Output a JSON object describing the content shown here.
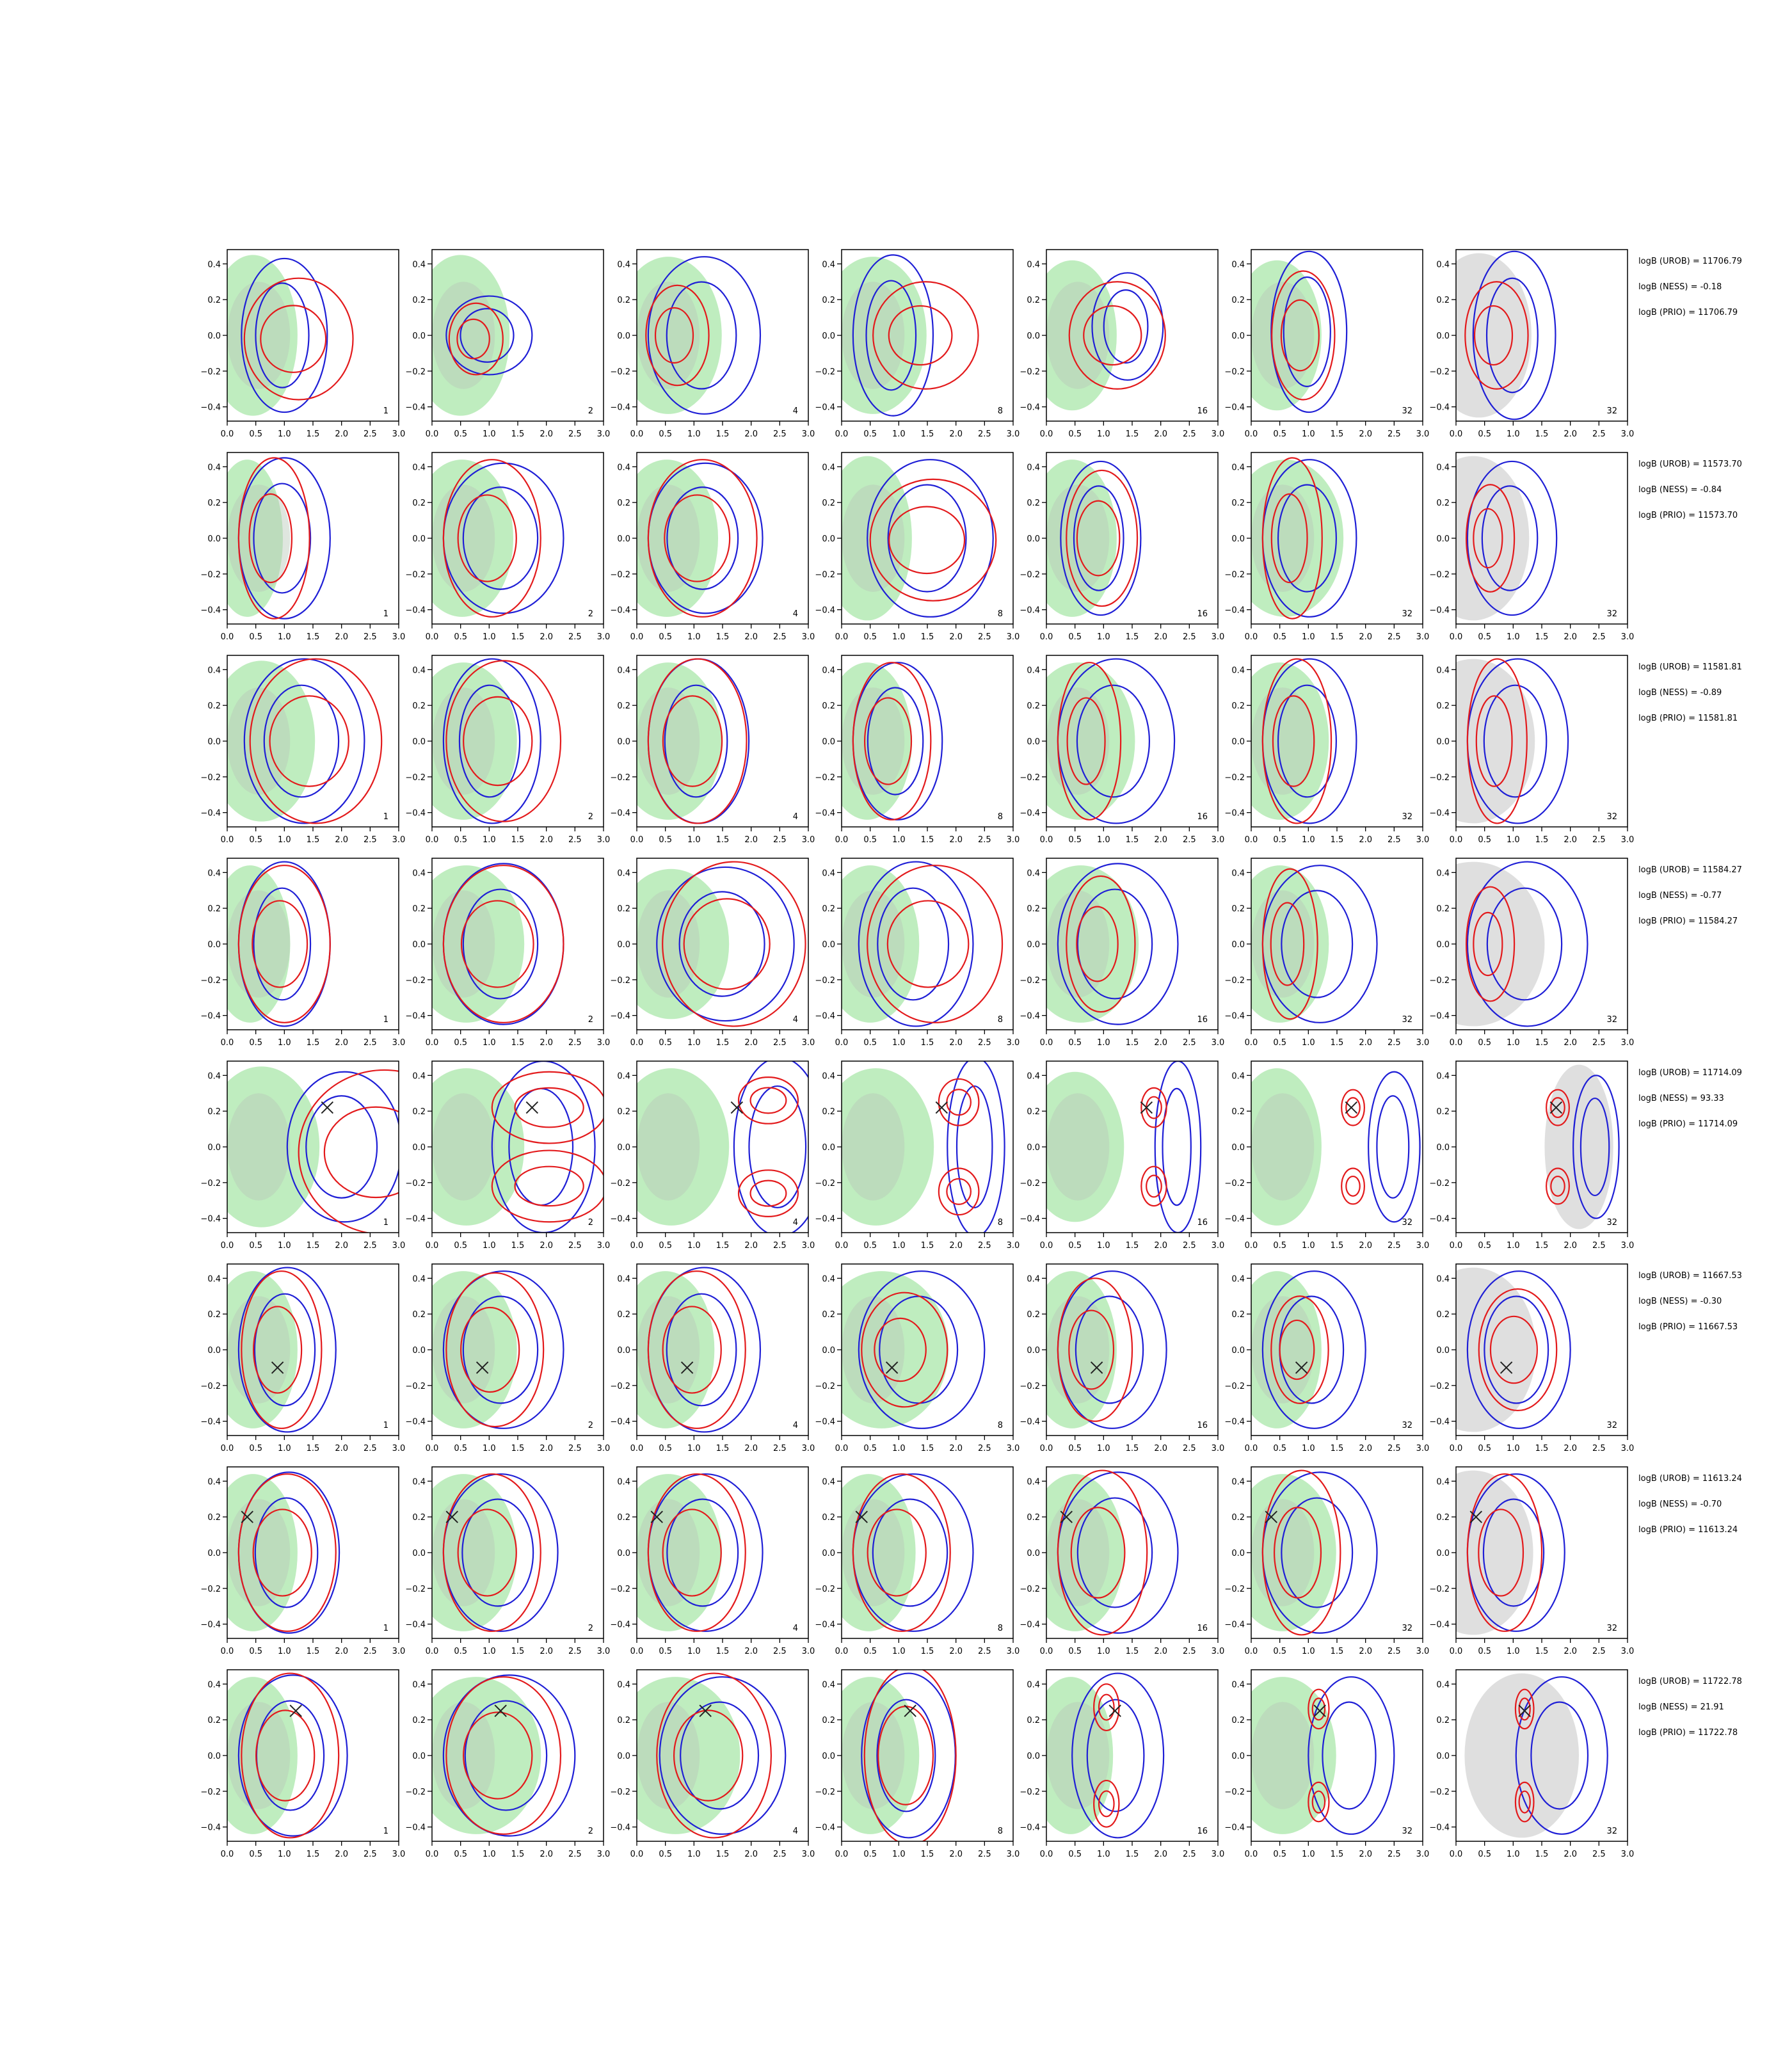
{
  "chart_data": {
    "type": "contour",
    "grid": "8 rows x 7 panels",
    "grid_lines": false,
    "x_axis": {
      "ticks": [
        "0.0",
        "0.5",
        "1.0",
        "1.5",
        "2.0",
        "2.5",
        "3.0"
      ],
      "range": [
        0,
        3.0
      ]
    },
    "y_axis": {
      "ticks": [
        "0.4",
        "0.2",
        "0.0",
        "−0.2",
        "−0.4"
      ],
      "range": [
        -0.48,
        0.48
      ]
    },
    "panel_labels": [
      "1",
      "2",
      "4",
      "8",
      "16",
      "32",
      "32"
    ],
    "colors": {
      "red_contour": "#e31a1c",
      "blue_contour": "#1f1fd6",
      "green_fill": "#b4eab4",
      "grey_fill": "#dcdcdc",
      "marker": "#222222"
    },
    "rows": [
      {
        "annotations": [
          "logB (UROB) = 11706.79",
          "logB (NESS) = -0.18",
          "logB (PRIO) = 11706.79"
        ],
        "truth": null,
        "red": [
          [
            0.3,
            -0.02,
            0.95,
            0.34
          ],
          [
            0.3,
            -0.02,
            0.47,
            0.2
          ],
          [
            0.16,
            0,
            0.55,
            0.28
          ],
          [
            0.55,
            0,
            0.92,
            0.3
          ],
          [
            0.4,
            0,
            0.84,
            0.3
          ],
          [
            0.36,
            0,
            0.55,
            0.36
          ],
          [
            0.16,
            0,
            0.55,
            0.3
          ]
        ],
        "blue": [
          [
            0.25,
            0,
            0.75,
            0.43
          ],
          [
            0.25,
            0,
            0.75,
            0.22
          ],
          [
            0.2,
            0,
            0.98,
            0.44
          ],
          [
            0.2,
            0,
            0.7,
            0.45
          ],
          [
            0.8,
            0.05,
            0.62,
            0.3
          ],
          [
            0.35,
            0.02,
            0.66,
            0.45
          ],
          [
            0.3,
            0,
            0.72,
            0.47
          ]
        ],
        "green": [
          [
            0.2,
            0,
            1.0,
            0.45
          ],
          [
            0.2,
            0,
            1.1,
            0.45
          ],
          [
            0.2,
            0,
            1.2,
            0.44
          ],
          [
            0.2,
            0,
            1.2,
            0.44
          ],
          [
            0.2,
            0,
            1.0,
            0.42
          ],
          [
            0.2,
            0,
            1.0,
            0.42
          ],
          null
        ]
      },
      {
        "annotations": [
          "logB (UROB) = 11573.70",
          "logB (NESS) = -0.84",
          "logB (PRIO) = 11573.70"
        ],
        "truth": null,
        "red": [
          [
            0.2,
            0,
            0.62,
            0.45
          ],
          [
            0.2,
            0,
            0.85,
            0.44
          ],
          [
            0.2,
            0,
            0.95,
            0.44
          ],
          [
            0.5,
            -0.01,
            1.1,
            0.34
          ],
          [
            0.35,
            0,
            0.62,
            0.38
          ],
          [
            0.2,
            0,
            0.52,
            0.45
          ],
          [
            0.18,
            0,
            0.42,
            0.3
          ]
        ],
        "blue": [
          [
            0.2,
            0,
            0.8,
            0.45
          ],
          [
            0.2,
            0,
            1.05,
            0.42
          ],
          [
            0.2,
            0,
            1.0,
            0.42
          ],
          [
            0.45,
            0,
            1.1,
            0.44
          ],
          [
            0.25,
            0,
            0.7,
            0.43
          ],
          [
            0.2,
            0,
            0.82,
            0.44
          ],
          [
            0.2,
            0,
            0.78,
            0.43
          ]
        ],
        "green": [
          [
            0.2,
            0,
            0.8,
            0.44
          ],
          [
            0.2,
            0,
            1.15,
            0.44
          ],
          [
            0.2,
            0,
            1.15,
            0.44
          ],
          [
            0.2,
            0,
            1.0,
            0.46
          ],
          [
            0.2,
            0,
            1.0,
            0.44
          ],
          [
            0.2,
            0,
            1.3,
            0.44
          ],
          null
        ]
      },
      {
        "annotations": [
          "logB (UROB) = 11581.81",
          "logB (NESS) = -0.89",
          "logB (PRIO) = 11581.81"
        ],
        "truth": null,
        "red": [
          [
            0.4,
            0,
            1.15,
            0.46
          ],
          [
            0.25,
            0,
            1.0,
            0.45
          ],
          [
            0.2,
            0,
            0.86,
            0.46
          ],
          [
            0.2,
            0,
            0.68,
            0.44
          ],
          [
            0.2,
            0,
            0.55,
            0.44
          ],
          [
            0.2,
            0,
            0.6,
            0.46
          ],
          [
            0.2,
            0,
            0.52,
            0.46
          ]
        ],
        "blue": [
          [
            0.3,
            0,
            1.05,
            0.46
          ],
          [
            0.2,
            0,
            0.85,
            0.46
          ],
          [
            0.2,
            0,
            0.88,
            0.46
          ],
          [
            0.2,
            0,
            0.78,
            0.44
          ],
          [
            0.2,
            0,
            1.02,
            0.46
          ],
          [
            0.2,
            0,
            0.82,
            0.46
          ],
          [
            0.2,
            0,
            0.88,
            0.46
          ]
        ],
        "green": [
          [
            0.25,
            0,
            1.2,
            0.45
          ],
          [
            0.2,
            0,
            1.2,
            0.44
          ],
          [
            0.2,
            0,
            1.2,
            0.44
          ],
          [
            0.2,
            0,
            1.0,
            0.44
          ],
          [
            0.2,
            0,
            1.25,
            0.44
          ],
          [
            0.2,
            0,
            1.1,
            0.44
          ],
          null
        ]
      },
      {
        "annotations": [
          "logB (UROB) = 11584.27",
          "logB (NESS) = -0.77",
          "logB (PRIO) = 11584.27"
        ],
        "truth": null,
        "red": [
          [
            0.2,
            0,
            0.8,
            0.44
          ],
          [
            0.2,
            0,
            1.05,
            0.44
          ],
          [
            0.45,
            0,
            1.25,
            0.46
          ],
          [
            0.45,
            0,
            1.18,
            0.44
          ],
          [
            0.35,
            0,
            0.6,
            0.38
          ],
          [
            0.2,
            0,
            0.48,
            0.42
          ],
          [
            0.18,
            0,
            0.42,
            0.32
          ]
        ],
        "blue": [
          [
            0.2,
            0,
            0.8,
            0.46
          ],
          [
            0.2,
            0,
            1.05,
            0.45
          ],
          [
            0.35,
            0,
            1.2,
            0.43
          ],
          [
            0.3,
            0,
            1.0,
            0.46
          ],
          [
            0.2,
            0,
            1.05,
            0.45
          ],
          [
            0.2,
            0,
            1.0,
            0.44
          ],
          [
            0.2,
            0,
            1.05,
            0.46
          ]
        ],
        "green": [
          [
            0.2,
            0,
            0.9,
            0.44
          ],
          [
            0.2,
            0,
            1.3,
            0.44
          ],
          [
            0.2,
            0,
            1.3,
            0.42
          ],
          [
            0.2,
            0,
            1.1,
            0.44
          ],
          [
            0.2,
            0,
            1.3,
            0.44
          ],
          [
            0.2,
            0,
            1.1,
            0.44
          ],
          null
        ]
      },
      {
        "annotations": [
          "logB (UROB) = 11714.09",
          "logB (NESS) = 93.33",
          "logB (PRIO) = 11714.09"
        ],
        "truth": [
          1.75,
          0.22
        ],
        "red": [
          [
            1.25,
            -0.03,
            1.5,
            0.46
          ],
          [
            2.05,
            0.22,
            1.0,
            0.2
          ],
          [
            2.3,
            0.26,
            0.52,
            0.13
          ],
          [
            2.05,
            0.25,
            0.35,
            0.13
          ],
          [
            1.88,
            0.22,
            0.22,
            0.11
          ],
          [
            1.78,
            0.22,
            0.2,
            0.1
          ],
          [
            1.78,
            0.22,
            0.2,
            0.1
          ]
        ],
        "blue": [
          [
            1.05,
            0,
            1.0,
            0.42
          ],
          [
            1.05,
            0,
            0.9,
            0.48
          ],
          [
            1.7,
            0,
            0.8,
            0.5
          ],
          [
            1.85,
            0,
            0.5,
            0.5
          ],
          [
            1.9,
            0,
            0.4,
            0.48
          ],
          [
            2.05,
            0,
            0.45,
            0.42
          ],
          [
            2.05,
            0,
            0.4,
            0.4
          ]
        ],
        "green": [
          [
            0.2,
            0,
            1.3,
            0.45
          ],
          [
            0.2,
            0,
            1.3,
            0.44
          ],
          [
            0.2,
            0,
            1.3,
            0.44
          ],
          [
            0.2,
            0,
            1.3,
            0.44
          ],
          [
            0.2,
            0,
            1.1,
            0.42
          ],
          [
            0.2,
            0,
            1.0,
            0.44
          ],
          null
        ]
      },
      {
        "annotations": [
          "logB (UROB) = 11667.53",
          "logB (NESS) = -0.30",
          "logB (PRIO) = 11667.53"
        ],
        "truth": [
          0.88,
          -0.1
        ],
        "red": [
          [
            0.25,
            0,
            0.7,
            0.44
          ],
          [
            0.25,
            0,
            0.85,
            0.43
          ],
          [
            0.2,
            0,
            0.85,
            0.44
          ],
          [
            0.35,
            0,
            0.75,
            0.32
          ],
          [
            0.2,
            0,
            0.65,
            0.4
          ],
          [
            0.35,
            0,
            0.5,
            0.3
          ],
          [
            0.4,
            0,
            0.68,
            0.34
          ]
        ],
        "blue": [
          [
            0.2,
            0,
            0.85,
            0.46
          ],
          [
            0.2,
            0,
            1.05,
            0.44
          ],
          [
            0.2,
            0,
            0.98,
            0.46
          ],
          [
            0.3,
            0,
            1.1,
            0.44
          ],
          [
            0.2,
            0,
            0.95,
            0.44
          ],
          [
            0.2,
            0,
            0.9,
            0.44
          ],
          [
            0.2,
            0,
            0.9,
            0.44
          ]
        ],
        "green": [
          [
            0.2,
            0,
            1.0,
            0.44
          ],
          [
            0.2,
            0,
            1.2,
            0.44
          ],
          [
            0.2,
            0,
            1.1,
            0.44
          ],
          [
            0.2,
            0,
            1.5,
            0.44
          ],
          [
            0.2,
            0,
            1.0,
            0.44
          ],
          [
            0.2,
            0,
            1.0,
            0.44
          ],
          null
        ]
      },
      {
        "annotations": [
          "logB (UROB) = 11613.24",
          "logB (NESS) = -0.70",
          "logB (PRIO) = 11613.24"
        ],
        "truth": [
          0.35,
          0.2
        ],
        "red": [
          [
            0.2,
            0,
            0.85,
            0.44
          ],
          [
            0.2,
            0,
            0.85,
            0.44
          ],
          [
            0.2,
            0,
            0.85,
            0.44
          ],
          [
            0.2,
            0,
            0.85,
            0.44
          ],
          [
            0.2,
            0,
            0.78,
            0.46
          ],
          [
            0.2,
            0,
            0.68,
            0.46
          ],
          [
            0.2,
            0,
            0.65,
            0.44
          ]
        ],
        "blue": [
          [
            0.2,
            0,
            0.88,
            0.45
          ],
          [
            0.2,
            0,
            1.0,
            0.44
          ],
          [
            0.2,
            0,
            1.0,
            0.44
          ],
          [
            0.2,
            0,
            1.05,
            0.44
          ],
          [
            0.2,
            0,
            1.05,
            0.45
          ],
          [
            0.2,
            0,
            1.0,
            0.45
          ],
          [
            0.2,
            0,
            0.85,
            0.44
          ]
        ],
        "green": [
          [
            0.2,
            0,
            1.0,
            0.44
          ],
          [
            0.2,
            0,
            1.2,
            0.44
          ],
          [
            0.2,
            0,
            1.2,
            0.44
          ],
          [
            0.2,
            0,
            1.05,
            0.44
          ],
          [
            0.2,
            0,
            1.1,
            0.44
          ],
          [
            0.2,
            0,
            1.2,
            0.44
          ],
          null
        ]
      },
      {
        "annotations": [
          "logB (UROB) = 11722.78",
          "logB (NESS) = 21.91",
          "logB (PRIO) = 11722.78"
        ],
        "truth": [
          1.2,
          0.25
        ],
        "red": [
          [
            0.25,
            0,
            0.85,
            0.46
          ],
          [
            0.25,
            0,
            1.0,
            0.44
          ],
          [
            0.35,
            0,
            1.0,
            0.46
          ],
          [
            0.4,
            0,
            0.8,
            0.5
          ],
          [
            1.05,
            0.27,
            0.22,
            0.13
          ],
          [
            1.18,
            0.26,
            0.18,
            0.11
          ],
          [
            1.2,
            0.26,
            0.16,
            0.11
          ]
        ],
        "blue": [
          [
            0.2,
            0,
            0.95,
            0.45
          ],
          [
            0.2,
            0,
            1.15,
            0.45
          ],
          [
            0.4,
            0,
            1.1,
            0.44
          ],
          [
            0.35,
            0,
            0.82,
            0.46
          ],
          [
            0.45,
            0,
            0.8,
            0.46
          ],
          [
            1.0,
            0,
            0.75,
            0.44
          ],
          [
            1.05,
            0,
            0.8,
            0.44
          ]
        ],
        "green": [
          [
            0.2,
            0,
            1.0,
            0.44
          ],
          [
            0.3,
            0,
            1.45,
            0.44
          ],
          [
            0.2,
            0,
            1.45,
            0.44
          ],
          [
            0.2,
            0,
            1.1,
            0.44
          ],
          [
            0.2,
            0,
            0.95,
            0.44
          ],
          [
            0.2,
            0,
            1.2,
            0.44
          ],
          null
        ]
      }
    ]
  }
}
